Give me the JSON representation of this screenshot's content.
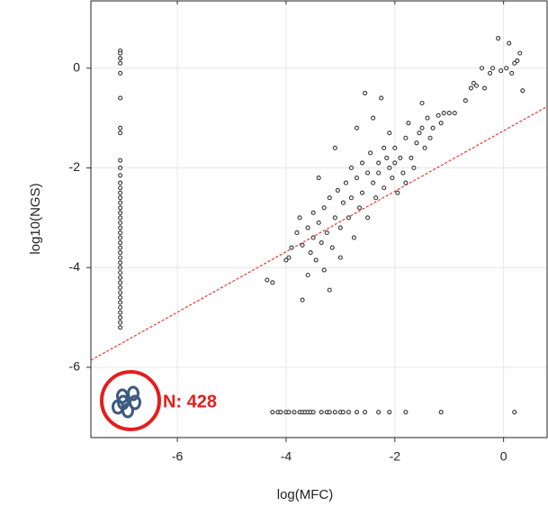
{
  "chart_data": {
    "type": "scatter",
    "x_label": "log(MFC)",
    "y_label": "log10(NGS)",
    "annotation": "N: 428",
    "xlim": [
      -7.59,
      0.8
    ],
    "ylim": [
      -7.41,
      1.35
    ],
    "xticks": [
      -6,
      -4,
      -2,
      0
    ],
    "yticks": [
      0,
      -2,
      -4,
      -6
    ],
    "grid": true,
    "marker_color": "#333333",
    "series": [
      {
        "x": [
          -7.05,
          -7.05,
          -7.05,
          -7.05,
          -7.05,
          -7.05,
          -7.05,
          -7.05,
          -7.05,
          -7.05,
          -7.05,
          -7.05,
          -7.05,
          -7.05,
          -7.05,
          -7.05,
          -7.05,
          -7.05,
          -7.05,
          -7.05,
          -7.05,
          -7.05,
          -7.05,
          -7.05,
          -7.05,
          -7.05,
          -7.05,
          -7.05,
          -7.05,
          -7.05,
          -7.05,
          -7.05,
          -7.05,
          -7.05,
          -7.05,
          -7.05,
          -7.05,
          -7.05,
          -7.05,
          -7.05,
          -7.05
        ],
        "y": [
          0.35,
          0.3,
          0.2,
          0.1,
          -0.1,
          -0.6,
          -1.2,
          -1.3,
          -1.85,
          -2.0,
          -2.15,
          -2.3,
          -2.4,
          -2.5,
          -2.6,
          -2.7,
          -2.8,
          -2.9,
          -3.0,
          -3.1,
          -3.2,
          -3.3,
          -3.4,
          -3.5,
          -3.6,
          -3.7,
          -3.8,
          -3.9,
          -4.0,
          -4.1,
          -4.2,
          -4.3,
          -4.4,
          -4.5,
          -4.6,
          -4.7,
          -4.8,
          -4.9,
          -5.0,
          -5.1,
          -5.2
        ]
      },
      {
        "x": [
          -4.35,
          -4.25,
          -4.0,
          -3.95,
          -3.9,
          -3.8,
          -3.75,
          -3.7,
          -3.7,
          -3.6,
          -3.6,
          -3.55,
          -3.5,
          -3.5,
          -3.45,
          -3.4,
          -3.4,
          -3.35,
          -3.3,
          -3.3,
          -3.25,
          -3.2,
          -3.2,
          -3.15,
          -3.1,
          -3.1,
          -3.05,
          -3.0,
          -3.0,
          -2.95,
          -2.9,
          -2.85,
          -2.8,
          -2.8,
          -2.75,
          -2.7,
          -2.7,
          -2.65,
          -2.6,
          -2.6,
          -2.55,
          -2.5,
          -2.5,
          -2.45,
          -2.4,
          -2.4,
          -2.35,
          -2.3,
          -2.3,
          -2.25,
          -2.2,
          -2.2,
          -2.15,
          -2.1,
          -2.1,
          -2.05,
          -2.0,
          -2.0,
          -1.95,
          -1.9,
          -1.85,
          -1.8,
          -1.8,
          -1.75,
          -1.7,
          -1.65,
          -1.6,
          -1.55,
          -1.5,
          -1.5,
          -1.45,
          -1.4,
          -1.35,
          -1.3,
          -1.2,
          -1.15,
          -1.1,
          -1.0,
          -0.9,
          -0.7,
          -0.6,
          -0.55,
          -0.5,
          -0.4,
          -0.35,
          -0.25,
          -0.2,
          -0.1,
          -0.05,
          0.05,
          0.1,
          0.15,
          0.2,
          0.3,
          0.35,
          0.25
        ],
        "y": [
          -4.25,
          -4.3,
          -3.85,
          -3.8,
          -3.6,
          -3.3,
          -3.0,
          -4.65,
          -3.55,
          -3.2,
          -4.15,
          -3.7,
          -2.9,
          -3.4,
          -3.85,
          -2.2,
          -3.1,
          -3.5,
          -4.05,
          -2.8,
          -3.3,
          -4.45,
          -2.6,
          -3.6,
          -1.6,
          -3.0,
          -2.45,
          -3.2,
          -3.8,
          -2.7,
          -2.3,
          -3.0,
          -2.0,
          -2.6,
          -3.4,
          -1.2,
          -2.2,
          -2.8,
          -1.9,
          -2.5,
          -0.5,
          -2.1,
          -3.0,
          -1.7,
          -2.3,
          -1.0,
          -2.6,
          -1.9,
          -2.1,
          -0.6,
          -1.6,
          -2.4,
          -1.8,
          -2.0,
          -1.3,
          -2.2,
          -1.9,
          -1.6,
          -2.5,
          -1.8,
          -2.1,
          -1.4,
          -2.3,
          -1.1,
          -1.8,
          -2.0,
          -1.5,
          -1.3,
          -0.7,
          -1.2,
          -1.6,
          -1.0,
          -1.4,
          -1.2,
          -0.95,
          -1.1,
          -0.9,
          -0.9,
          -0.9,
          -0.65,
          -0.4,
          -0.3,
          -0.35,
          0.0,
          -0.4,
          -0.1,
          0.0,
          0.6,
          -0.05,
          0.0,
          0.5,
          -0.1,
          0.1,
          0.3,
          -0.45,
          0.15
        ]
      },
      {
        "x": [
          -4.25,
          -4.15,
          -4.1,
          -4.0,
          -3.95,
          -3.85,
          -3.75,
          -3.7,
          -3.65,
          -3.6,
          -3.55,
          -3.5,
          -3.35,
          -3.25,
          -3.2,
          -3.1,
          -3.0,
          -2.95,
          -2.85,
          -2.7,
          -2.55,
          -2.3,
          -2.1,
          -1.8,
          -1.15,
          0.2
        ],
        "y": [
          -6.9,
          -6.9,
          -6.9,
          -6.9,
          -6.9,
          -6.9,
          -6.9,
          -6.9,
          -6.9,
          -6.9,
          -6.9,
          -6.9,
          -6.9,
          -6.9,
          -6.9,
          -6.9,
          -6.9,
          -6.9,
          -6.9,
          -6.9,
          -6.9,
          -6.9,
          -6.9,
          -6.9,
          -6.9,
          -6.9
        ]
      }
    ],
    "fit_line": {
      "x": [
        -7.59,
        0.8
      ],
      "y": [
        -5.86,
        -0.77
      ],
      "color": "#e8352c"
    }
  }
}
